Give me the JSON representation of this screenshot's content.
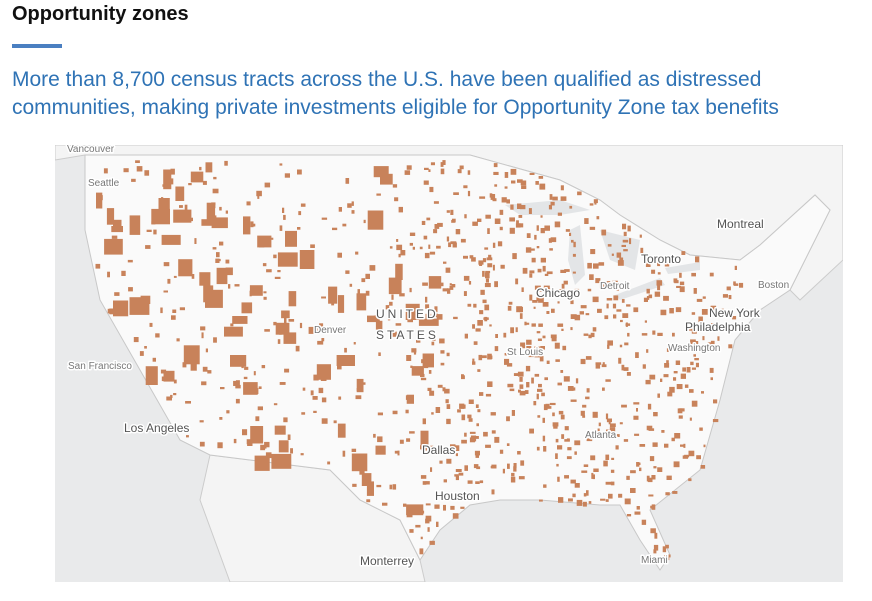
{
  "header": {
    "title": "Opportunity zones",
    "subtitle": "More than 8,700 census tracts across the U.S. have been qualified as distressed communities, making private investments eligible for Opportunity Zone tax benefits"
  },
  "map": {
    "labels": [
      "Vancouver",
      "Seattle",
      "San Francisco",
      "Los Angeles",
      "Denver",
      "UNITED",
      "STATES",
      "Chicago",
      "Detroit",
      "Toronto",
      "Montreal",
      "Boston",
      "New York",
      "Philadelphia",
      "Washington",
      "St Louis",
      "Atlanta",
      "Dallas",
      "Houston",
      "Monterrey",
      "Miami"
    ]
  }
}
